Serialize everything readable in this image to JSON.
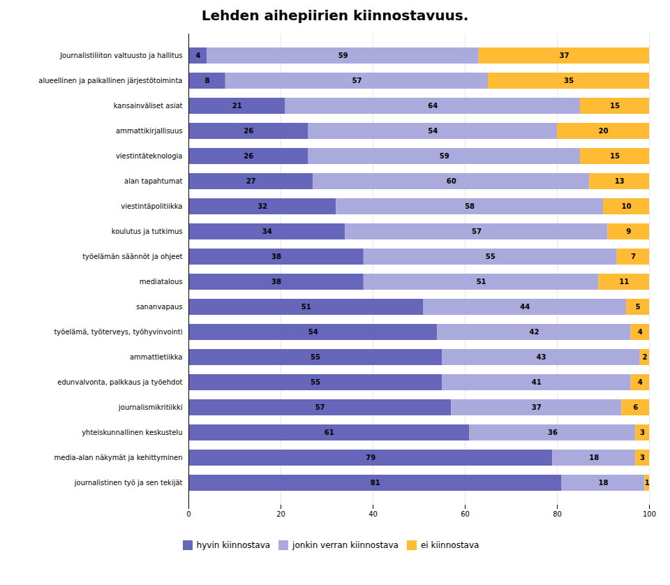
{
  "chart_data": {
    "type": "bar",
    "orientation": "horizontal",
    "stacked": true,
    "title": "Lehden aihepiirien kiinnostavuus.",
    "categories": [
      "Journalistiliiton valtuusto ja hallitus",
      "alueellinen ja paikallinen järjestötoiminta",
      "kansainväliset asiat",
      "ammattikirjallisuus",
      "viestintäteknologia",
      "alan tapahtumat",
      "viestintäpolitiikka",
      "koulutus ja tutkimus",
      "työelämän säännöt ja ohjeet",
      "mediatalous",
      "sananvapaus",
      "työelämä, työterveys, työhyvinvointi",
      "ammattietiikka",
      "edunvalvonta, palkkaus ja työehdot",
      "journalismikritiikki",
      "yhteiskunnallinen keskustelu",
      "media-alan näkymät ja kehittyminen",
      "journalistinen työ ja sen tekijät"
    ],
    "series": [
      {
        "name": "hyvin kiinnostava",
        "color": "#6666bb",
        "values": [
          4,
          8,
          21,
          26,
          26,
          27,
          32,
          34,
          38,
          38,
          51,
          54,
          55,
          55,
          57,
          61,
          79,
          81
        ]
      },
      {
        "name": "jonkin verran kiinnostava",
        "color": "#aaaadd",
        "values": [
          59,
          57,
          64,
          54,
          59,
          60,
          58,
          57,
          55,
          51,
          44,
          42,
          43,
          41,
          37,
          36,
          18,
          18
        ]
      },
      {
        "name": "ei kiinnostava",
        "color": "#ffbb33",
        "values": [
          37,
          35,
          15,
          20,
          15,
          13,
          10,
          9,
          7,
          11,
          5,
          4,
          2,
          4,
          6,
          3,
          3,
          1
        ]
      }
    ],
    "xlim": [
      0,
      100
    ],
    "xticks": [
      0,
      20,
      40,
      60,
      80,
      100
    ],
    "grid": true,
    "data_labels": true,
    "legend": "bottom"
  }
}
